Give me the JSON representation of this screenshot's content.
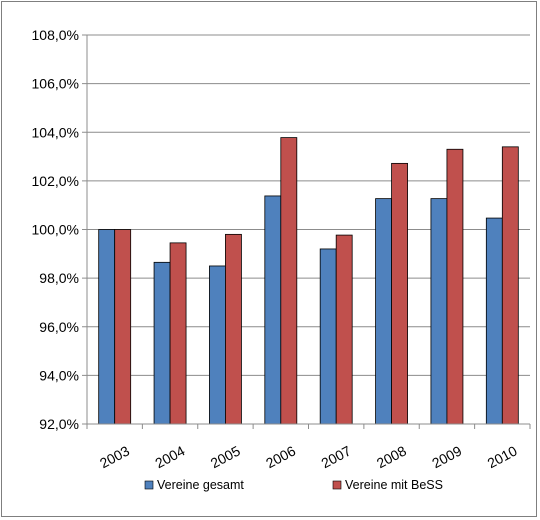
{
  "chart_data": {
    "type": "bar",
    "title": "",
    "xlabel": "",
    "ylabel": "",
    "categories": [
      "2003",
      "2004",
      "2005",
      "2006",
      "2007",
      "2008",
      "2009",
      "2010"
    ],
    "series": [
      {
        "name": "Vereine gesamt",
        "color": "#4f81bd",
        "values": [
          100.0,
          98.65,
          98.5,
          101.38,
          99.2,
          101.27,
          101.27,
          100.47
        ]
      },
      {
        "name": "Vereine mit BeSS",
        "color": "#c0504d",
        "values": [
          100.0,
          99.45,
          99.8,
          103.78,
          99.77,
          102.72,
          103.3,
          103.4
        ]
      }
    ],
    "ylim": [
      92,
      108
    ],
    "ytick_labels": [
      "92,0%",
      "94,0%",
      "96,0%",
      "98,0%",
      "100,0%",
      "102,0%",
      "104,0%",
      "106,0%",
      "108,0%"
    ],
    "ytick_values": [
      92,
      94,
      96,
      98,
      100,
      102,
      104,
      106,
      108
    ],
    "grid": true,
    "legend": "bottom",
    "x_tick_rotation": "slanted"
  }
}
